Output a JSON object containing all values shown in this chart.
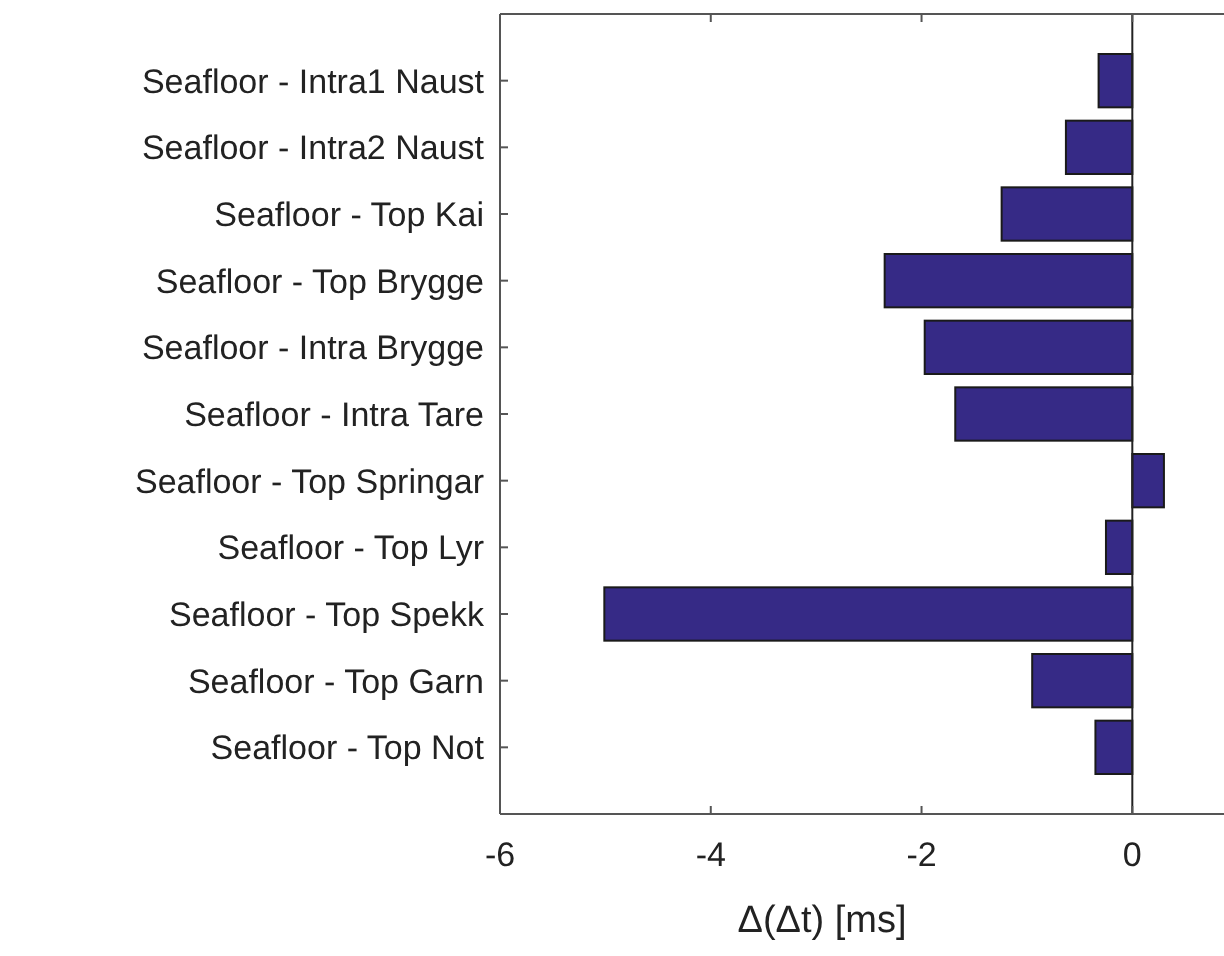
{
  "chart_data": {
    "type": "bar",
    "orientation": "horizontal",
    "xlabel": "Δ(Δt) [ms]",
    "categories": [
      "Seafloor - Intra1 Naust",
      "Seafloor - Intra2 Naust",
      "Seafloor - Top Kai",
      "Seafloor - Top Brygge",
      "Seafloor - Intra Brygge",
      "Seafloor - Intra Tare",
      "Seafloor - Top Springar",
      "Seafloor - Top Lyr",
      "Seafloor - Top Spekk",
      "Seafloor - Top Garn",
      "Seafloor - Top Not"
    ],
    "values": [
      -0.32,
      -0.63,
      -1.24,
      -2.35,
      -1.97,
      -1.68,
      0.3,
      -0.25,
      -5.01,
      -0.95,
      -0.35
    ],
    "color": "#362a86",
    "xlim": [
      -6,
      0.87
    ],
    "xticks": [
      -6,
      -4,
      -2,
      0
    ]
  }
}
